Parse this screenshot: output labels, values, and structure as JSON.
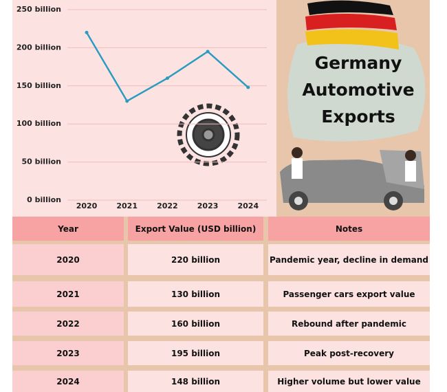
{
  "chart_data": {
    "type": "line",
    "title": "Germany Automotive Exports",
    "categories": [
      "2020",
      "2021",
      "2022",
      "2023",
      "2024"
    ],
    "values": [
      220,
      130,
      160,
      195,
      148
    ],
    "color": "#2b9cc0",
    "ylim": [
      0,
      250
    ],
    "yticks": [
      {
        "value": 0,
        "label": "0 billion"
      },
      {
        "value": 50,
        "label": "50 billion"
      },
      {
        "value": 100,
        "label": "100 billion"
      },
      {
        "value": 150,
        "label": "150 billion"
      },
      {
        "value": 200,
        "label": "200 billion"
      },
      {
        "value": 250,
        "label": "250 billion"
      }
    ],
    "grid": true
  },
  "table": {
    "header": [
      "Year",
      "Export Value (USD billion)",
      "Notes"
    ],
    "rows": [
      [
        "2020",
        "220 billion",
        "Pandemic year, decline in demand"
      ],
      [
        "2021",
        "130 billion",
        "Passenger cars export value"
      ],
      [
        "2022",
        "160 billion",
        "Rebound after pandemic"
      ],
      [
        "2023",
        "195 billion",
        "Peak post-recovery"
      ],
      [
        "2024",
        "148 billion",
        "Higher volume but lower value"
      ]
    ]
  }
}
